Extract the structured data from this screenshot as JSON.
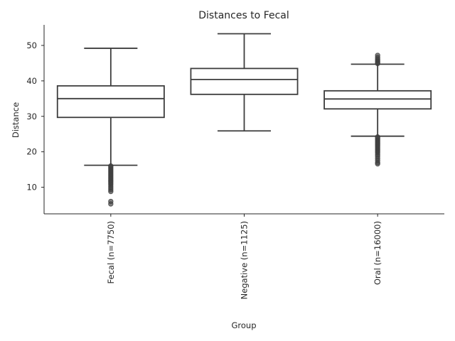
{
  "chart_data": {
    "type": "box",
    "title": "Distances to Fecal",
    "xlabel": "Group",
    "ylabel": "Distance",
    "ylim": [
      2.5,
      55.8
    ],
    "yticks": [
      10,
      20,
      30,
      40,
      50
    ],
    "grid": false,
    "categories": [
      "Fecal (n=7750)",
      "Negative (n=1125)",
      "Oral (n=16000)"
    ],
    "boxes": [
      {
        "name": "Fecal (n=7750)",
        "whisker_low": 16.2,
        "q1": 29.7,
        "median": 35.0,
        "q3": 38.6,
        "whisker_high": 49.2,
        "fliers": [
          16.0,
          15.6,
          15.2,
          14.8,
          14.4,
          14.0,
          13.6,
          13.2,
          12.8,
          12.4,
          12.0,
          11.6,
          11.2,
          10.8,
          10.3,
          9.8,
          9.3,
          8.8,
          6.0,
          5.3
        ]
      },
      {
        "name": "Negative (n=1125)",
        "whisker_low": 25.9,
        "q1": 36.2,
        "median": 40.4,
        "q3": 43.5,
        "whisker_high": 53.3,
        "fliers": []
      },
      {
        "name": "Oral (n=16000)",
        "whisker_low": 24.4,
        "q1": 32.1,
        "median": 34.9,
        "q3": 37.2,
        "whisker_high": 44.7,
        "fliers": [
          44.9,
          45.3,
          45.7,
          46.1,
          46.6,
          47.2,
          24.2,
          23.8,
          23.4,
          23.0,
          22.6,
          22.2,
          21.8,
          21.4,
          21.0,
          20.6,
          20.2,
          19.8,
          19.3,
          18.8,
          18.2,
          17.6,
          17.0,
          16.6
        ]
      }
    ]
  }
}
